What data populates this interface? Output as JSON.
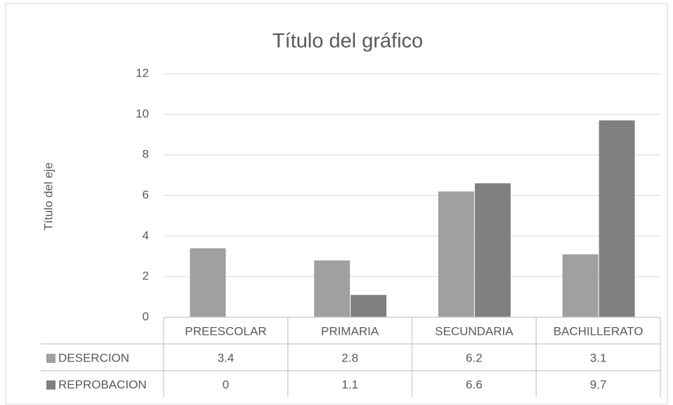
{
  "chart_data": {
    "type": "bar",
    "title": "Título del gráfico",
    "y_label": "Título del eje",
    "categories": [
      "PREESCOLAR",
      "PRIMARIA",
      "SECUNDARIA",
      "BACHILLERATO"
    ],
    "series": [
      {
        "name": "DESERCION",
        "color": "#a0a0a0",
        "values": [
          3.4,
          2.8,
          6.2,
          3.1
        ]
      },
      {
        "name": "REPROBACION",
        "color": "#808080",
        "values": [
          0,
          1.1,
          6.6,
          9.7
        ]
      }
    ],
    "ylim": [
      0,
      12
    ],
    "yticks": [
      0,
      2,
      4,
      6,
      8,
      10,
      12
    ],
    "grid": true,
    "data_table": true
  }
}
